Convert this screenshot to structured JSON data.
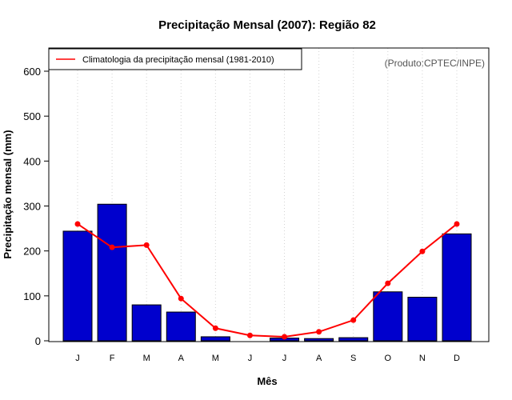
{
  "chart_data": {
    "type": "bar",
    "title": "Precipitação Mensal (2007): Região 82",
    "xlabel": "Mês",
    "ylabel": "Precipitação mensal (mm)",
    "categories": [
      "J",
      "F",
      "M",
      "A",
      "M",
      "J",
      "J",
      "A",
      "S",
      "O",
      "N",
      "D"
    ],
    "ylim": [
      0,
      655
    ],
    "yticks": [
      0,
      100,
      200,
      300,
      400,
      500,
      600
    ],
    "grid": "vertical-dotted",
    "series": [
      {
        "name": "Precipitação mensal 2007",
        "type": "bar",
        "color": "#0000CD",
        "values": [
          244,
          304,
          80,
          64,
          9,
          0,
          6,
          5,
          7,
          109,
          97,
          238
        ]
      },
      {
        "name": "Climatologia da precipitação mensal (1981-2010)",
        "type": "line",
        "color": "#FF0000",
        "values": [
          260,
          208,
          213,
          94,
          28,
          12,
          9,
          20,
          46,
          128,
          199,
          260
        ]
      }
    ],
    "legend": {
      "position": "top-left",
      "entries": [
        "Climatologia da precipitação mensal (1981-2010)"
      ]
    },
    "annotation": "(Produto:CPTEC/INPE)"
  }
}
